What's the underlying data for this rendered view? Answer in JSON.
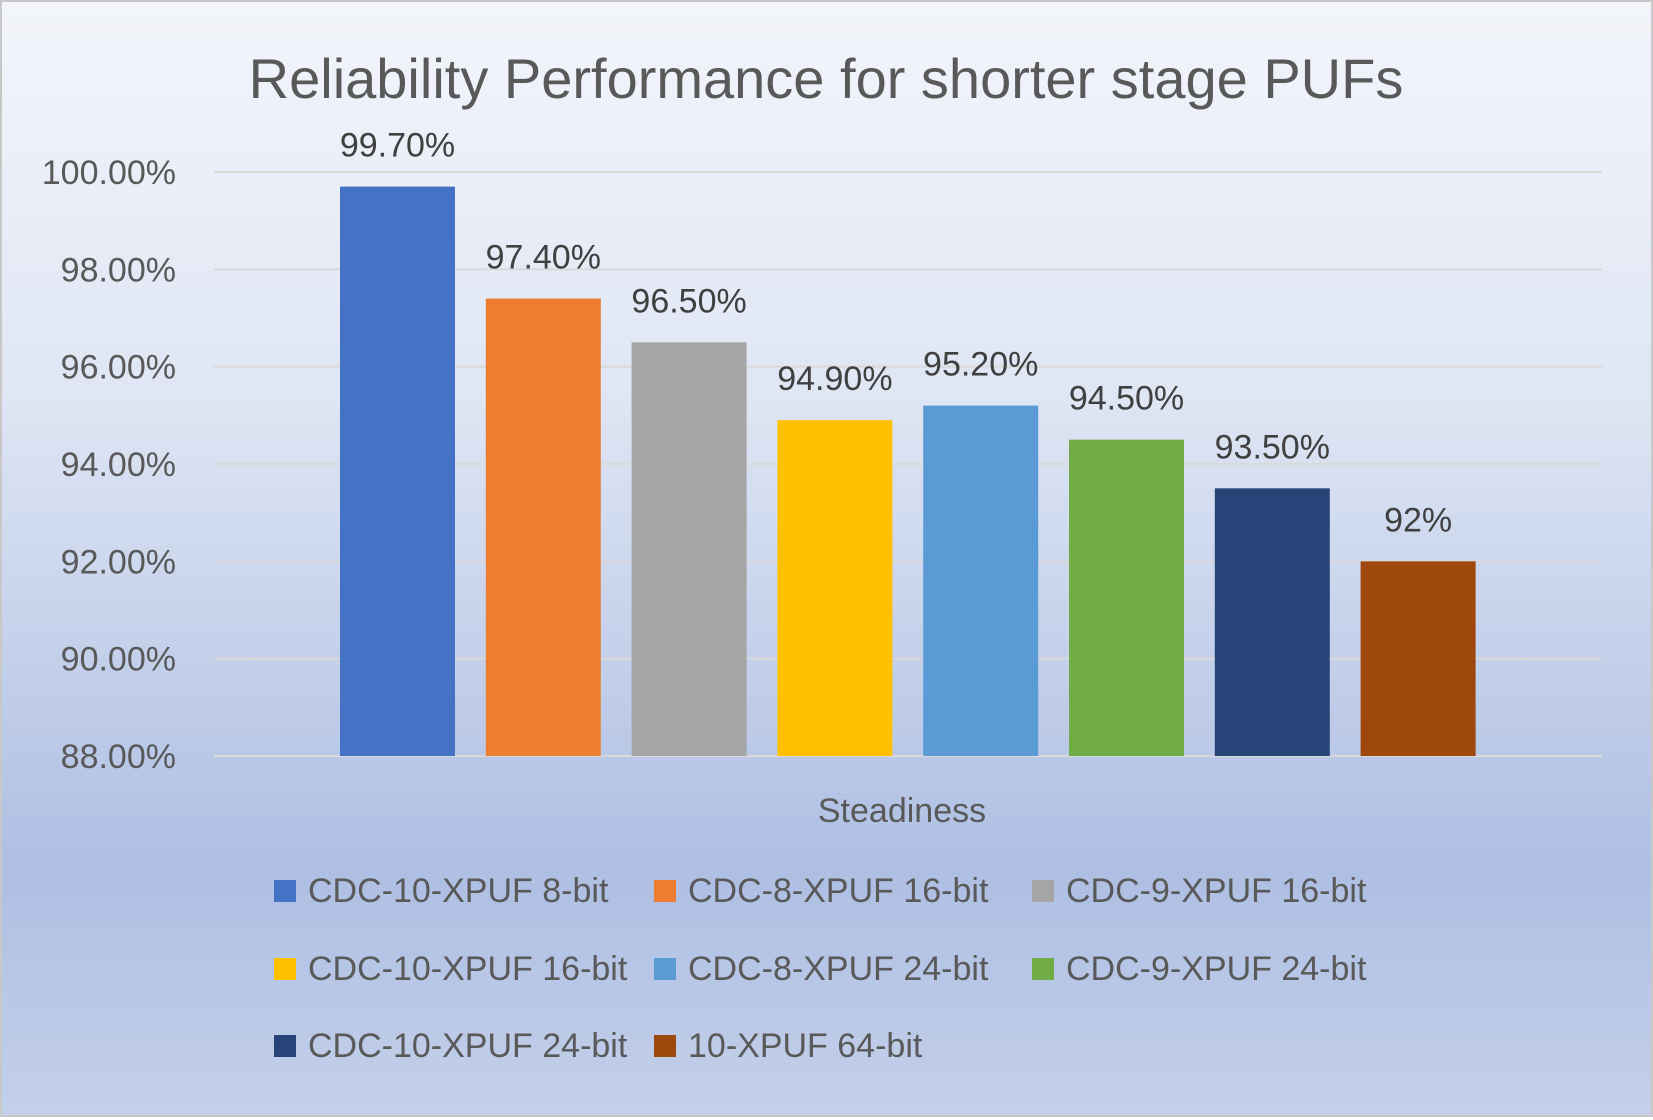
{
  "chart_data": {
    "type": "bar",
    "title": "Reliability Performance for shorter stage PUFs",
    "xlabel": "Steadiness",
    "ylabel": "",
    "ylim": [
      88,
      100
    ],
    "ytick_step": 2,
    "ytick_labels": [
      "88.00%",
      "90.00%",
      "92.00%",
      "94.00%",
      "96.00%",
      "98.00%",
      "100.00%"
    ],
    "grid": true,
    "legend_position": "bottom",
    "categories": [
      "Steadiness"
    ],
    "series": [
      {
        "name": "CDC-10-XPUF 8-bit",
        "values": [
          99.7
        ],
        "label": "99.70%",
        "color": "#4472C4"
      },
      {
        "name": "CDC-8-XPUF 16-bit",
        "values": [
          97.4
        ],
        "label": "97.40%",
        "color": "#ED7D31"
      },
      {
        "name": "CDC-9-XPUF 16-bit",
        "values": [
          96.5
        ],
        "label": "96.50%",
        "color": "#A5A5A5"
      },
      {
        "name": "CDC-10-XPUF 16-bit",
        "values": [
          94.9
        ],
        "label": "94.90%",
        "color": "#FFC000"
      },
      {
        "name": "CDC-8-XPUF 24-bit",
        "values": [
          95.2
        ],
        "label": "95.20%",
        "color": "#5B9BD5"
      },
      {
        "name": "CDC-9-XPUF 24-bit",
        "values": [
          94.5
        ],
        "label": "94.50%",
        "color": "#70AD47"
      },
      {
        "name": "CDC-10-XPUF 24-bit",
        "values": [
          93.5
        ],
        "label": "93.50%",
        "color": "#264478"
      },
      {
        "name": "10-XPUF 64-bit",
        "values": [
          92.0
        ],
        "label": "92%",
        "color": "#9E480E"
      }
    ]
  }
}
